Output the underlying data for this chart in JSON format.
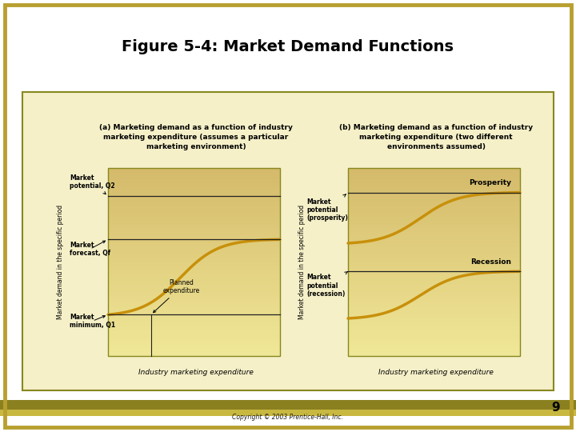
{
  "title": "Figure 5-4: Market Demand Functions",
  "title_fontsize": 14,
  "title_fontweight": "bold",
  "bg_white": "#ffffff",
  "bg_inner": "#f5f0c8",
  "border_outer_color": "#b8a030",
  "border_inner_color": "#888820",
  "copyright": "Copyright © 2003 Prentice-Hall, Inc.",
  "page_number": "9",
  "subtitle_a": "(a) Marketing demand as a function of industry\nmarketing expenditure (assumes a particular\nmarketing environment)",
  "subtitle_b": "(b) Marketing demand as a function of industry\nmarketing expenditure (two different\nenvironments assumed)",
  "ylabel": "Market demand in the specific period",
  "xlabel_a": "Industry marketing expenditure",
  "xlabel_b": "Industry marketing expenditure",
  "curve_color": "#c8900a",
  "curve_lw": 2.5,
  "hline_color": "#222222",
  "hline_lw": 0.9,
  "plot_bg_top": "#d4b86a",
  "plot_bg_bottom": "#f0e898",
  "label_mkt_potential": "Market\npotential, Q2",
  "label_mkt_forecast": "Market\nforecast, Qf",
  "label_mkt_minimum": "Market\nminimum, Q1",
  "label_planned": "Planned\nexpenditure",
  "label_mkt_pot_pros": "Market\npotential\n(prosperity)",
  "label_mkt_pot_rec": "Market\npotential\n(recession)",
  "label_prosperity": "Prosperity",
  "label_recession": "Recession",
  "bottom_stripe_color": "#8a8020",
  "bottom_stripe2_color": "#c8b840"
}
